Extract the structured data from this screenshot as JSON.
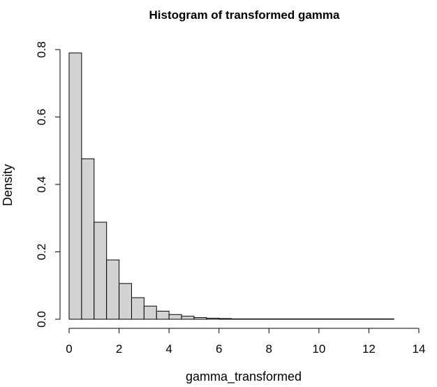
{
  "chart_data": {
    "type": "bar",
    "title": "Histogram of transformed gamma",
    "xlabel": "gamma_transformed",
    "ylabel": "Density",
    "xlim": [
      0,
      14
    ],
    "ylim": [
      0,
      0.8
    ],
    "bin_width": 0.5,
    "bin_edges_start": 0,
    "values": [
      0.79,
      0.476,
      0.288,
      0.176,
      0.106,
      0.064,
      0.039,
      0.024,
      0.014,
      0.009,
      0.005,
      0.003,
      0.002,
      0.001,
      0.0008,
      0.0005,
      0.0003,
      0.0002,
      0.0001,
      0.0001,
      5e-05,
      3e-05,
      2e-05,
      1e-05,
      1e-05,
      5e-06
    ],
    "xticks": [
      0,
      2,
      4,
      6,
      8,
      10,
      12,
      14
    ],
    "xtick_labels": [
      "0",
      "2",
      "4",
      "6",
      "8",
      "10",
      "12",
      "14"
    ],
    "yticks": [
      0.0,
      0.2,
      0.4,
      0.6,
      0.8
    ],
    "ytick_labels": [
      "0.0",
      "0.2",
      "0.4",
      "0.6",
      "0.8"
    ],
    "grid": false,
    "bar_fill": "#d3d3d3",
    "bar_stroke": "#000000"
  }
}
